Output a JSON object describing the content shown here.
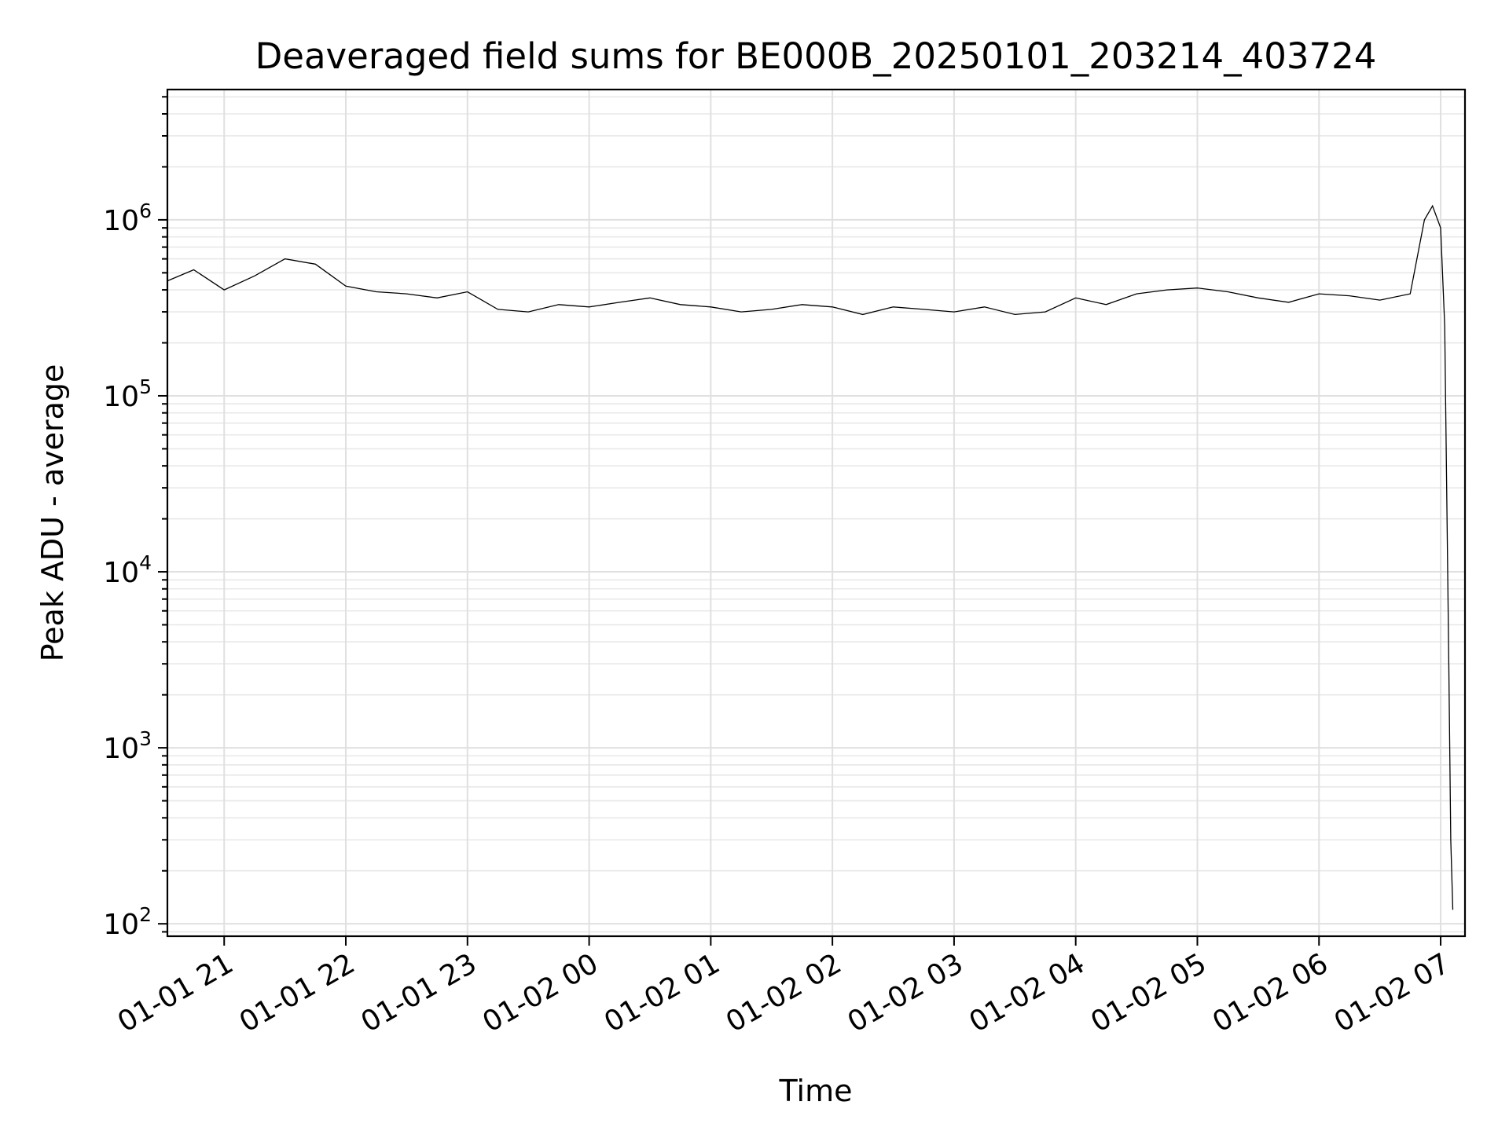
{
  "chart_data": {
    "type": "line",
    "title": "Deaveraged field sums for BE000B_20250101_203214_403724",
    "xlabel": "Time",
    "ylabel": "Peak ADU - average",
    "yscale": "log",
    "grid": true,
    "line_color": "#000000",
    "xlim": [
      "2025-01-01 20:32",
      "2025-01-02 07:12"
    ],
    "ylim": [
      85,
      5500000
    ],
    "x_ticks": [
      {
        "value": "2025-01-01 21:00",
        "label": "01-01 21"
      },
      {
        "value": "2025-01-01 22:00",
        "label": "01-01 22"
      },
      {
        "value": "2025-01-01 23:00",
        "label": "01-01 23"
      },
      {
        "value": "2025-01-02 00:00",
        "label": "01-02 00"
      },
      {
        "value": "2025-01-02 01:00",
        "label": "01-02 01"
      },
      {
        "value": "2025-01-02 02:00",
        "label": "01-02 02"
      },
      {
        "value": "2025-01-02 03:00",
        "label": "01-02 03"
      },
      {
        "value": "2025-01-02 04:00",
        "label": "01-02 04"
      },
      {
        "value": "2025-01-02 05:00",
        "label": "01-02 05"
      },
      {
        "value": "2025-01-02 06:00",
        "label": "01-02 06"
      },
      {
        "value": "2025-01-02 07:00",
        "label": "01-02 07"
      }
    ],
    "y_ticks": [
      {
        "value": 100,
        "base": "10",
        "exp": "2"
      },
      {
        "value": 1000,
        "base": "10",
        "exp": "3"
      },
      {
        "value": 10000,
        "base": "10",
        "exp": "4"
      },
      {
        "value": 100000,
        "base": "10",
        "exp": "5"
      },
      {
        "value": 1000000,
        "base": "10",
        "exp": "6"
      }
    ],
    "series": [
      {
        "x": [
          "2025-01-01 20:32",
          "2025-01-01 20:45",
          "2025-01-01 21:00",
          "2025-01-01 21:15",
          "2025-01-01 21:30",
          "2025-01-01 21:45",
          "2025-01-01 22:00",
          "2025-01-01 22:15",
          "2025-01-01 22:30",
          "2025-01-01 22:45",
          "2025-01-01 23:00",
          "2025-01-01 23:15",
          "2025-01-01 23:30",
          "2025-01-01 23:45",
          "2025-01-02 00:00",
          "2025-01-02 00:15",
          "2025-01-02 00:30",
          "2025-01-02 00:45",
          "2025-01-02 01:00",
          "2025-01-02 01:15",
          "2025-01-02 01:30",
          "2025-01-02 01:45",
          "2025-01-02 02:00",
          "2025-01-02 02:15",
          "2025-01-02 02:30",
          "2025-01-02 02:45",
          "2025-01-02 03:00",
          "2025-01-02 03:15",
          "2025-01-02 03:30",
          "2025-01-02 03:45",
          "2025-01-02 04:00",
          "2025-01-02 04:15",
          "2025-01-02 04:30",
          "2025-01-02 04:45",
          "2025-01-02 05:00",
          "2025-01-02 05:15",
          "2025-01-02 05:30",
          "2025-01-02 05:45",
          "2025-01-02 06:00",
          "2025-01-02 06:15",
          "2025-01-02 06:30",
          "2025-01-02 06:45",
          "2025-01-02 06:52",
          "2025-01-02 06:56",
          "2025-01-02 07:00",
          "2025-01-02 07:02",
          "2025-01-02 07:04",
          "2025-01-02 07:05",
          "2025-01-02 07:06"
        ],
        "y": [
          450000,
          520000,
          400000,
          480000,
          600000,
          560000,
          420000,
          390000,
          380000,
          360000,
          390000,
          310000,
          300000,
          330000,
          320000,
          340000,
          360000,
          330000,
          320000,
          300000,
          310000,
          330000,
          320000,
          290000,
          320000,
          310000,
          300000,
          320000,
          290000,
          300000,
          360000,
          330000,
          380000,
          400000,
          410000,
          390000,
          360000,
          340000,
          380000,
          370000,
          350000,
          380000,
          1000000,
          1200000,
          900000,
          250000,
          3000,
          300,
          120
        ]
      }
    ]
  }
}
